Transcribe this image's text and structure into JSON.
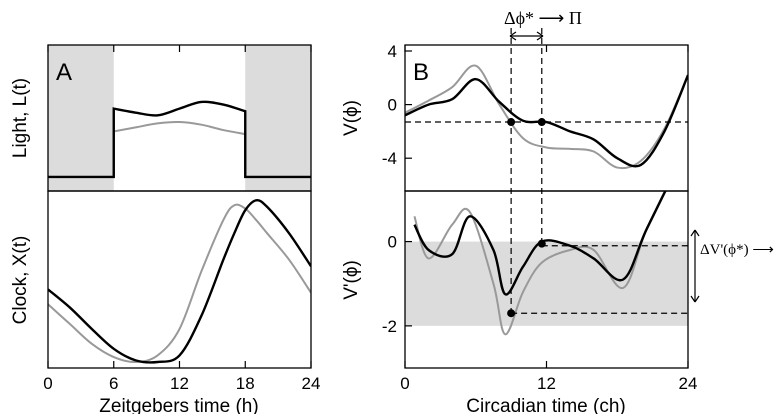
{
  "chart_data": [
    {
      "type": "line",
      "panel_label": "A",
      "ylabel": "Light, L(t)",
      "x": [
        0,
        6,
        6,
        8,
        10,
        12,
        14,
        16,
        18,
        18,
        24
      ],
      "series": [
        {
          "color": "#000000",
          "values": [
            0.06,
            0.06,
            0.57,
            0.54,
            0.52,
            0.57,
            0.62,
            0.6,
            0.55,
            0.06,
            0.06
          ]
        },
        {
          "color": "#999999",
          "values": [
            0.06,
            0.06,
            0.4,
            0.43,
            0.46,
            0.47,
            0.45,
            0.41,
            0.38,
            0.06,
            0.06
          ]
        }
      ],
      "shaded_x_ranges": [
        [
          0,
          6
        ],
        [
          18,
          24
        ]
      ],
      "xlim": [
        0,
        24
      ],
      "ylim": [
        0,
        1
      ]
    },
    {
      "type": "line",
      "ylabel": "Clock, X(t)",
      "xlabel": "Zeitgebers time (h)",
      "xticks": [
        "0",
        "6",
        "12",
        "18",
        "24"
      ],
      "x": [
        0,
        2,
        4,
        6,
        8,
        10,
        12,
        14,
        16,
        17,
        18,
        19,
        20,
        22,
        24
      ],
      "series": [
        {
          "color": "#000000",
          "values": [
            0.44,
            0.33,
            0.2,
            0.08,
            0.01,
            0.0,
            0.04,
            0.28,
            0.62,
            0.78,
            0.92,
            0.98,
            0.94,
            0.78,
            0.58
          ]
        },
        {
          "color": "#999999",
          "values": [
            0.35,
            0.23,
            0.11,
            0.03,
            0.0,
            0.04,
            0.2,
            0.55,
            0.86,
            0.95,
            0.93,
            0.86,
            0.78,
            0.62,
            0.42
          ]
        }
      ],
      "xlim": [
        0,
        24
      ],
      "ylim": [
        0,
        1
      ]
    },
    {
      "type": "line",
      "panel_label": "B",
      "ylabel": "V(ϕ)",
      "yticks": [
        "4",
        "0",
        "-4"
      ],
      "x": [
        0,
        2,
        4,
        6,
        8,
        10,
        12,
        14,
        16,
        18,
        20,
        22,
        24
      ],
      "series": [
        {
          "color": "#000000",
          "values": [
            -0.8,
            0.0,
            0.4,
            1.9,
            0.2,
            -1.2,
            -1.3,
            -2.0,
            -2.6,
            -4.0,
            -4.5,
            -2.0,
            2.2
          ]
        },
        {
          "color": "#999999",
          "values": [
            -0.6,
            0.3,
            1.3,
            2.9,
            0.0,
            -2.5,
            -3.2,
            -3.3,
            -3.5,
            -4.7,
            -4.2,
            -1.8,
            2.2
          ]
        }
      ],
      "dashed_hline": -1.3,
      "dashed_vlines": [
        9.0,
        11.6
      ],
      "points": [
        {
          "x": 9.0,
          "y": -1.3
        },
        {
          "x": 11.6,
          "y": -1.3
        }
      ],
      "annotation": "Δϕ* ⟶ Π",
      "xlim": [
        0,
        24
      ],
      "ylim": [
        -6,
        4
      ]
    },
    {
      "type": "line",
      "ylabel": "V'(ϕ)",
      "xlabel": "Circadian time (ch)",
      "xticks": [
        "0",
        "12",
        "24"
      ],
      "yticks": [
        "0",
        "-2"
      ],
      "x": [
        0.8,
        2,
        4,
        5.5,
        7.5,
        8.5,
        10,
        11.6,
        14,
        16,
        18.5,
        20.5,
        23.5
      ],
      "series": [
        {
          "color": "#000000",
          "values": [
            0.4,
            -0.2,
            -0.3,
            0.6,
            -0.2,
            -1.25,
            -0.6,
            0.0,
            -0.1,
            -0.4,
            -0.9,
            0.3,
            2.0
          ]
        },
        {
          "color": "#999999",
          "values": [
            0.6,
            -0.4,
            0.4,
            0.7,
            -1.0,
            -2.2,
            -1.2,
            -0.5,
            -0.2,
            -0.2,
            -1.1,
            0.3,
            2.0
          ]
        }
      ],
      "shaded_y_range": [
        -2,
        0
      ],
      "dashed_hlines": [
        -0.1,
        -1.7
      ],
      "points": [
        {
          "x": 9.0,
          "y": -1.7
        },
        {
          "x": 11.6,
          "y": -0.05
        }
      ],
      "annotation": "ΔV'(ϕ*) ⟶ Σ",
      "xlim": [
        0,
        24
      ],
      "ylim": [
        -3,
        1.2
      ]
    }
  ]
}
